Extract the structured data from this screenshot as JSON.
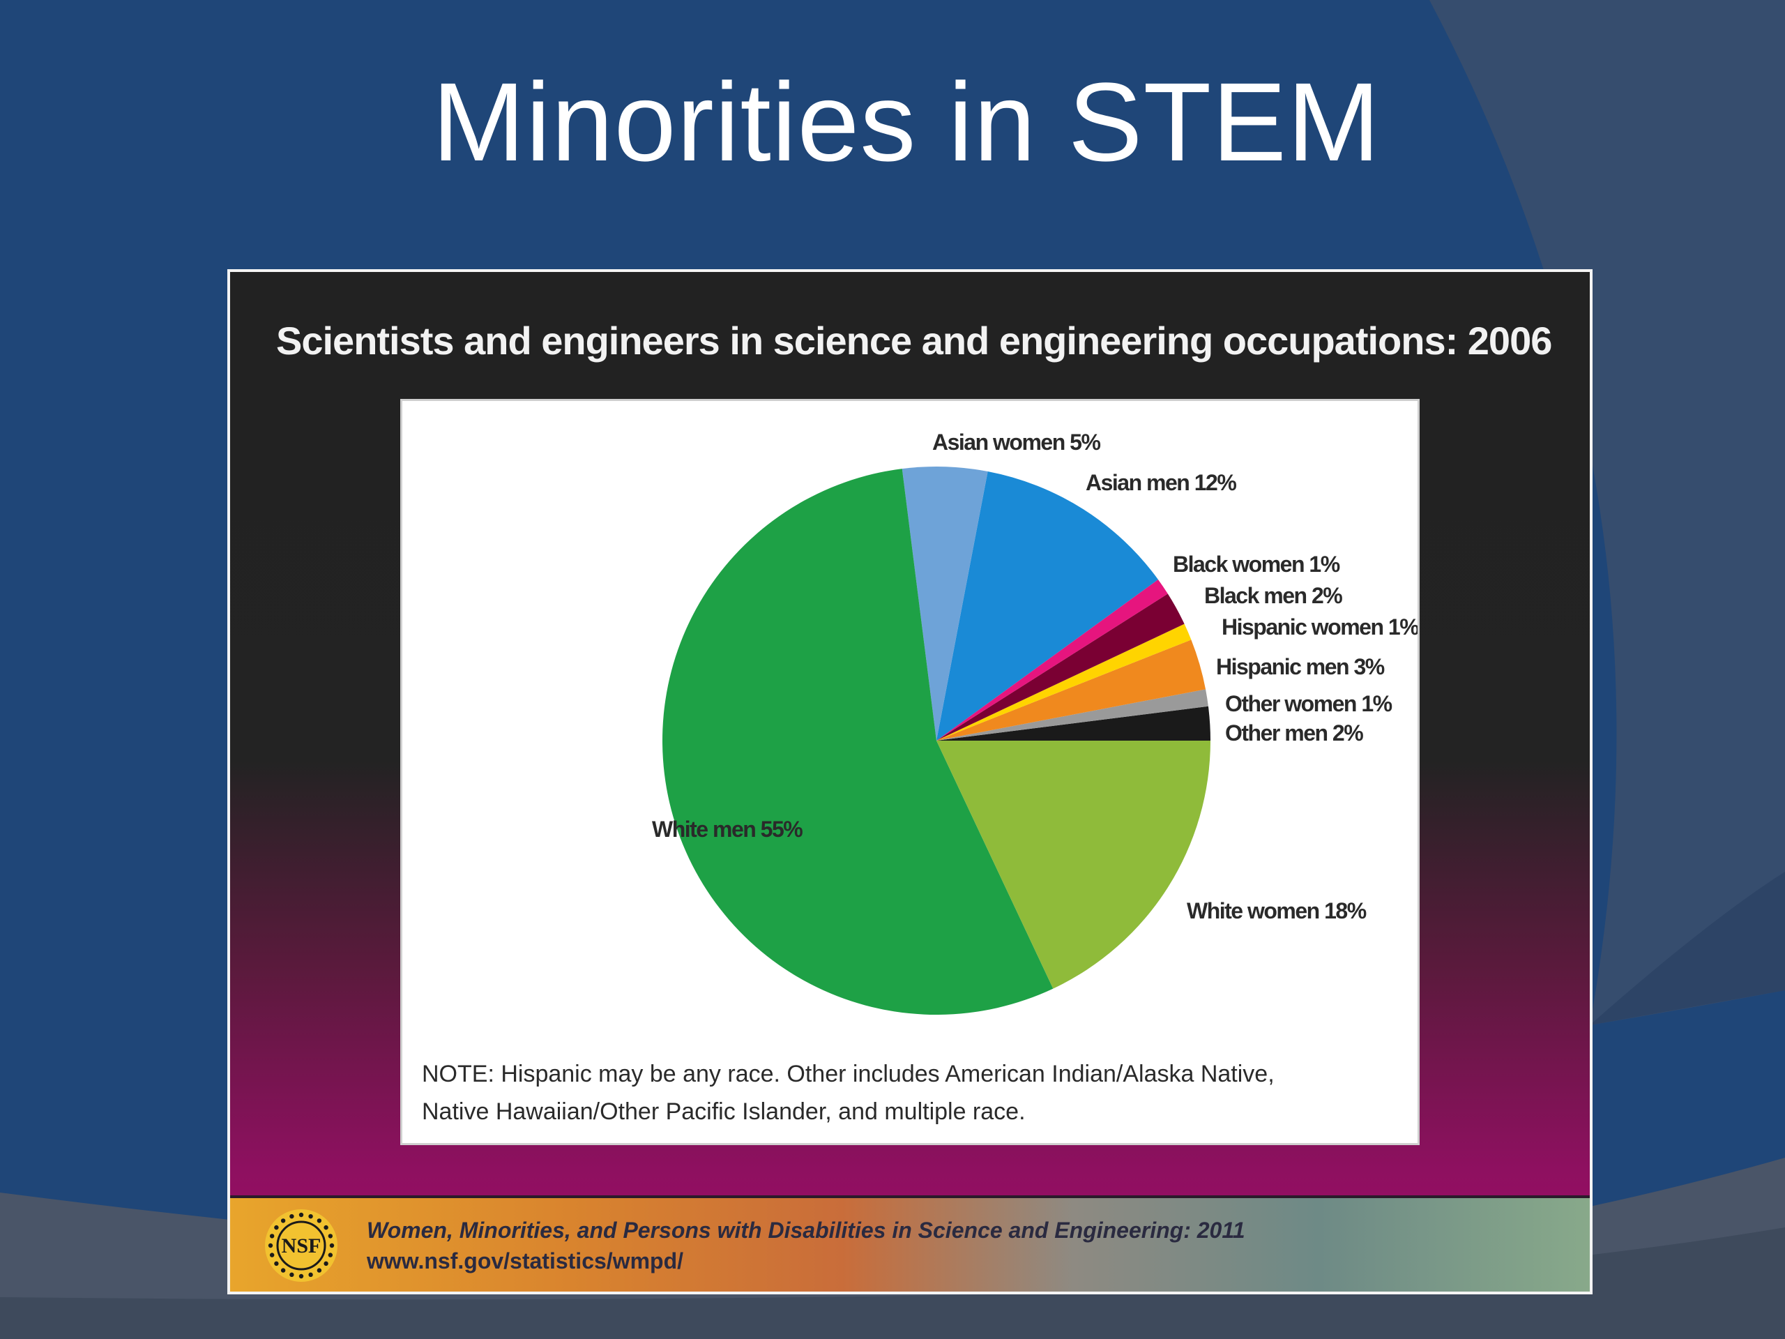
{
  "slide": {
    "title": "Minorities in STEM"
  },
  "figure": {
    "heading": "Scientists and engineers in science and engineering occupations: 2006",
    "note_line1": "NOTE: Hispanic may be any race. Other includes American Indian/Alaska Native,",
    "note_line2": "Native Hawaiian/Other Pacific Islander, and multiple race.",
    "source_title": "Women, Minorities, and Persons with Disabilities in Science and Engineering: 2011",
    "source_url": "www.nsf.gov/statistics/wmpd/",
    "logo_text": "NSF"
  },
  "colors": {
    "background": "#1f4678",
    "slide_title": "#ffffff"
  },
  "chart_data": {
    "type": "pie",
    "title": "Scientists and engineers in science and engineering occupations: 2006",
    "unit": "%",
    "slices": [
      {
        "label": "Other men 2%",
        "value": 2,
        "color": "#1a1a1a"
      },
      {
        "label": "Other women 1%",
        "value": 1,
        "color": "#9a9a9a"
      },
      {
        "label": "Hispanic men 3%",
        "value": 3,
        "color": "#f0891e"
      },
      {
        "label": "Hispanic women 1%",
        "value": 1,
        "color": "#ffd400"
      },
      {
        "label": "Black men 2%",
        "value": 2,
        "color": "#7a0033"
      },
      {
        "label": "Black women 1%",
        "value": 1,
        "color": "#e6157e"
      },
      {
        "label": "Asian men 12%",
        "value": 12,
        "color": "#1a8ad6"
      },
      {
        "label": "Asian women 5%",
        "value": 5,
        "color": "#6ea3d8"
      },
      {
        "label": "White men 55%",
        "value": 55,
        "color": "#1ea146"
      },
      {
        "label": "White women 18%",
        "value": 18,
        "color": "#8fbb3a"
      }
    ],
    "start": "3 o'clock",
    "direction": "counterclockwise",
    "legend": "none"
  }
}
